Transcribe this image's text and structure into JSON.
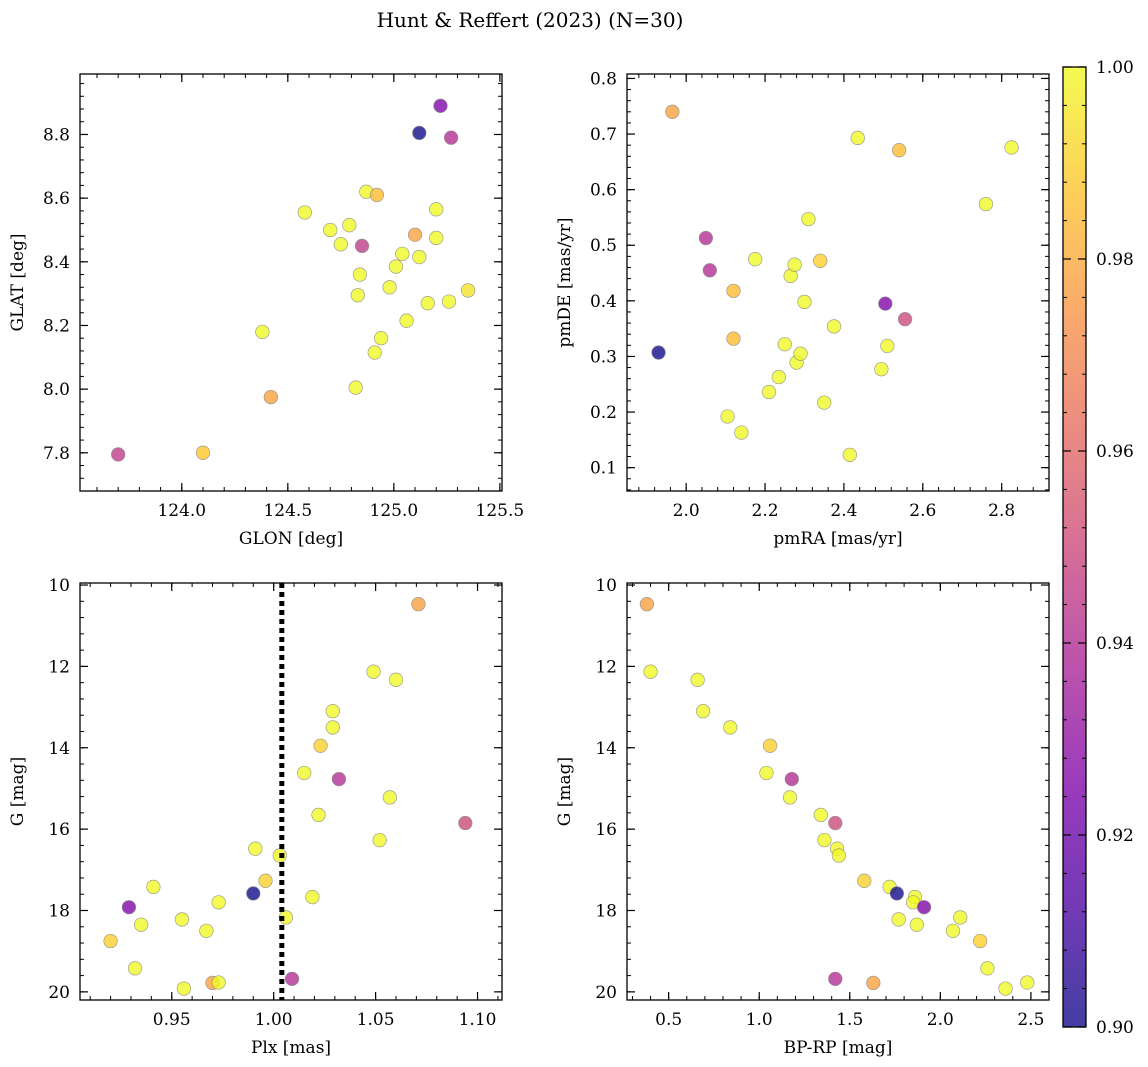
{
  "figure": {
    "title": "Hunt & Reffert (2023) (N=30)"
  },
  "colorbar": {
    "cmap": "plasma",
    "range": [
      0.9,
      1.0
    ],
    "ticks": [
      0.9,
      0.92,
      0.94,
      0.96,
      0.98,
      1.0
    ],
    "tick_labels": [
      "0.90",
      "0.92",
      "0.94",
      "0.96",
      "0.98",
      "1.00"
    ]
  },
  "chart_data": [
    {
      "type": "scatter",
      "xlabel": "GLON [deg]",
      "ylabel": "GLAT [deg]",
      "xlim": [
        123.52,
        125.51
      ],
      "ylim": [
        7.68,
        8.99
      ],
      "xticks": [
        124.0,
        124.5,
        125.0,
        125.5
      ],
      "xtick_labels": [
        "124.0",
        "124.5",
        "125.0",
        "125.5"
      ],
      "yticks": [
        7.8,
        8.0,
        8.2,
        8.4,
        8.6,
        8.8
      ],
      "ytick_labels": [
        "7.8",
        "8.0",
        "8.2",
        "8.4",
        "8.6",
        "8.8"
      ],
      "grid": false,
      "points": [
        {
          "x": 123.7,
          "y": 7.795,
          "c": 0.945
        },
        {
          "x": 124.1,
          "y": 7.8,
          "c": 0.988
        },
        {
          "x": 124.42,
          "y": 7.975,
          "c": 0.978
        },
        {
          "x": 124.38,
          "y": 8.18,
          "c": 1.0
        },
        {
          "x": 124.58,
          "y": 8.555,
          "c": 1.0
        },
        {
          "x": 124.7,
          "y": 8.5,
          "c": 1.0
        },
        {
          "x": 124.75,
          "y": 8.455,
          "c": 1.0
        },
        {
          "x": 124.79,
          "y": 8.515,
          "c": 1.0
        },
        {
          "x": 124.85,
          "y": 8.45,
          "c": 0.945
        },
        {
          "x": 124.87,
          "y": 8.62,
          "c": 1.0
        },
        {
          "x": 124.92,
          "y": 8.61,
          "c": 0.985
        },
        {
          "x": 124.84,
          "y": 8.36,
          "c": 1.0
        },
        {
          "x": 124.83,
          "y": 8.295,
          "c": 1.0
        },
        {
          "x": 124.82,
          "y": 8.005,
          "c": 1.0
        },
        {
          "x": 124.91,
          "y": 8.115,
          "c": 1.0
        },
        {
          "x": 124.94,
          "y": 8.16,
          "c": 1.0
        },
        {
          "x": 124.98,
          "y": 8.32,
          "c": 1.0
        },
        {
          "x": 125.01,
          "y": 8.385,
          "c": 1.0
        },
        {
          "x": 125.04,
          "y": 8.425,
          "c": 1.0
        },
        {
          "x": 125.06,
          "y": 8.215,
          "c": 1.0
        },
        {
          "x": 125.1,
          "y": 8.485,
          "c": 0.978
        },
        {
          "x": 125.12,
          "y": 8.415,
          "c": 1.0
        },
        {
          "x": 125.12,
          "y": 8.805,
          "c": 0.9
        },
        {
          "x": 125.16,
          "y": 8.27,
          "c": 1.0
        },
        {
          "x": 125.2,
          "y": 8.565,
          "c": 1.0
        },
        {
          "x": 125.2,
          "y": 8.475,
          "c": 1.0
        },
        {
          "x": 125.22,
          "y": 8.89,
          "c": 0.925
        },
        {
          "x": 125.26,
          "y": 8.275,
          "c": 1.0
        },
        {
          "x": 125.27,
          "y": 8.79,
          "c": 0.94
        },
        {
          "x": 125.35,
          "y": 8.31,
          "c": 0.995
        }
      ]
    },
    {
      "type": "scatter",
      "xlabel": "pmRA [mas/yr]",
      "ylabel": "pmDE [mas/yr]",
      "xlim": [
        1.85,
        2.92
      ],
      "ylim": [
        0.058,
        0.808
      ],
      "xticks": [
        2.0,
        2.2,
        2.4,
        2.6,
        2.8
      ],
      "xtick_labels": [
        "2.0",
        "2.2",
        "2.4",
        "2.6",
        "2.8"
      ],
      "yticks": [
        0.1,
        0.2,
        0.3,
        0.4,
        0.5,
        0.6,
        0.7,
        0.8
      ],
      "ytick_labels": [
        "0.1",
        "0.2",
        "0.3",
        "0.4",
        "0.5",
        "0.6",
        "0.7",
        "0.8"
      ],
      "grid": false,
      "points": [
        {
          "x": 1.93,
          "y": 0.307,
          "c": 0.9
        },
        {
          "x": 1.965,
          "y": 0.74,
          "c": 0.978
        },
        {
          "x": 2.05,
          "y": 0.513,
          "c": 0.94
        },
        {
          "x": 2.06,
          "y": 0.455,
          "c": 0.94
        },
        {
          "x": 2.105,
          "y": 0.192,
          "c": 1.0
        },
        {
          "x": 2.12,
          "y": 0.418,
          "c": 0.985
        },
        {
          "x": 2.12,
          "y": 0.332,
          "c": 0.985
        },
        {
          "x": 2.14,
          "y": 0.163,
          "c": 1.0
        },
        {
          "x": 2.175,
          "y": 0.475,
          "c": 1.0
        },
        {
          "x": 2.21,
          "y": 0.236,
          "c": 1.0
        },
        {
          "x": 2.235,
          "y": 0.263,
          "c": 1.0
        },
        {
          "x": 2.25,
          "y": 0.322,
          "c": 1.0
        },
        {
          "x": 2.265,
          "y": 0.445,
          "c": 1.0
        },
        {
          "x": 2.275,
          "y": 0.465,
          "c": 1.0
        },
        {
          "x": 2.28,
          "y": 0.289,
          "c": 1.0
        },
        {
          "x": 2.29,
          "y": 0.305,
          "c": 1.0
        },
        {
          "x": 2.3,
          "y": 0.398,
          "c": 1.0
        },
        {
          "x": 2.31,
          "y": 0.547,
          "c": 1.0
        },
        {
          "x": 2.34,
          "y": 0.472,
          "c": 0.99
        },
        {
          "x": 2.35,
          "y": 0.217,
          "c": 1.0
        },
        {
          "x": 2.375,
          "y": 0.354,
          "c": 1.0
        },
        {
          "x": 2.415,
          "y": 0.123,
          "c": 1.0
        },
        {
          "x": 2.435,
          "y": 0.693,
          "c": 1.0
        },
        {
          "x": 2.495,
          "y": 0.277,
          "c": 1.0
        },
        {
          "x": 2.505,
          "y": 0.395,
          "c": 0.925
        },
        {
          "x": 2.51,
          "y": 0.319,
          "c": 1.0
        },
        {
          "x": 2.54,
          "y": 0.671,
          "c": 0.985
        },
        {
          "x": 2.555,
          "y": 0.367,
          "c": 0.95
        },
        {
          "x": 2.76,
          "y": 0.574,
          "c": 1.0
        },
        {
          "x": 2.825,
          "y": 0.676,
          "c": 1.0
        }
      ]
    },
    {
      "type": "scatter",
      "xlabel": "Plx [mas]",
      "ylabel": "G [mag]",
      "xlim": [
        0.905,
        1.112
      ],
      "ylim": [
        20.2,
        9.95
      ],
      "xticks": [
        0.95,
        1.0,
        1.05,
        1.1
      ],
      "xtick_labels": [
        "0.95",
        "1.00",
        "1.05",
        "1.10"
      ],
      "yticks": [
        10,
        12,
        14,
        16,
        18,
        20
      ],
      "ytick_labels": [
        "10",
        "12",
        "14",
        "16",
        "18",
        "20"
      ],
      "grid": false,
      "vline": {
        "x": 1.004,
        "style": "dotted"
      },
      "points": [
        {
          "x": 0.92,
          "y": 18.75,
          "c": 0.99
        },
        {
          "x": 0.929,
          "y": 17.92,
          "c": 0.925
        },
        {
          "x": 0.932,
          "y": 19.42,
          "c": 1.0
        },
        {
          "x": 0.935,
          "y": 18.35,
          "c": 1.0
        },
        {
          "x": 0.941,
          "y": 17.42,
          "c": 1.0
        },
        {
          "x": 0.955,
          "y": 18.22,
          "c": 1.0
        },
        {
          "x": 0.956,
          "y": 19.92,
          "c": 1.0
        },
        {
          "x": 0.967,
          "y": 18.5,
          "c": 1.0
        },
        {
          "x": 0.97,
          "y": 19.78,
          "c": 0.978
        },
        {
          "x": 0.973,
          "y": 19.77,
          "c": 1.0
        },
        {
          "x": 0.973,
          "y": 17.8,
          "c": 1.0
        },
        {
          "x": 0.99,
          "y": 17.58,
          "c": 0.9
        },
        {
          "x": 0.991,
          "y": 16.48,
          "c": 1.0
        },
        {
          "x": 0.996,
          "y": 17.27,
          "c": 0.99
        },
        {
          "x": 1.003,
          "y": 16.65,
          "c": 1.0
        },
        {
          "x": 1.006,
          "y": 18.17,
          "c": 1.0
        },
        {
          "x": 1.009,
          "y": 19.68,
          "c": 0.94
        },
        {
          "x": 1.015,
          "y": 14.62,
          "c": 1.0
        },
        {
          "x": 1.019,
          "y": 17.67,
          "c": 1.0
        },
        {
          "x": 1.022,
          "y": 15.65,
          "c": 1.0
        },
        {
          "x": 1.023,
          "y": 13.95,
          "c": 0.99
        },
        {
          "x": 1.029,
          "y": 13.1,
          "c": 1.0
        },
        {
          "x": 1.029,
          "y": 13.5,
          "c": 1.0
        },
        {
          "x": 1.032,
          "y": 14.77,
          "c": 0.94
        },
        {
          "x": 1.049,
          "y": 12.13,
          "c": 1.0
        },
        {
          "x": 1.052,
          "y": 16.27,
          "c": 1.0
        },
        {
          "x": 1.057,
          "y": 15.22,
          "c": 1.0
        },
        {
          "x": 1.06,
          "y": 12.33,
          "c": 1.0
        },
        {
          "x": 1.071,
          "y": 10.47,
          "c": 0.978
        },
        {
          "x": 1.094,
          "y": 15.85,
          "c": 0.95
        }
      ]
    },
    {
      "type": "scatter",
      "xlabel": "BP-RP [mag]",
      "ylabel": "G [mag]",
      "xlim": [
        0.27,
        2.6
      ],
      "ylim": [
        20.2,
        9.95
      ],
      "xticks": [
        0.5,
        1.0,
        1.5,
        2.0,
        2.5
      ],
      "xtick_labels": [
        "0.5",
        "1.0",
        "1.5",
        "2.0",
        "2.5"
      ],
      "yticks": [
        10,
        12,
        14,
        16,
        18,
        20
      ],
      "ytick_labels": [
        "10",
        "12",
        "14",
        "16",
        "18",
        "20"
      ],
      "grid": false,
      "points": [
        {
          "x": 0.38,
          "y": 10.47,
          "c": 0.978
        },
        {
          "x": 0.4,
          "y": 12.13,
          "c": 1.0
        },
        {
          "x": 0.66,
          "y": 12.33,
          "c": 1.0
        },
        {
          "x": 0.69,
          "y": 13.1,
          "c": 1.0
        },
        {
          "x": 0.84,
          "y": 13.5,
          "c": 1.0
        },
        {
          "x": 1.06,
          "y": 13.95,
          "c": 0.99
        },
        {
          "x": 1.04,
          "y": 14.62,
          "c": 1.0
        },
        {
          "x": 1.18,
          "y": 14.77,
          "c": 0.94
        },
        {
          "x": 1.17,
          "y": 15.22,
          "c": 1.0
        },
        {
          "x": 1.34,
          "y": 15.65,
          "c": 1.0
        },
        {
          "x": 1.36,
          "y": 16.27,
          "c": 1.0
        },
        {
          "x": 1.42,
          "y": 15.85,
          "c": 0.95
        },
        {
          "x": 1.43,
          "y": 16.48,
          "c": 1.0
        },
        {
          "x": 1.44,
          "y": 16.65,
          "c": 1.0
        },
        {
          "x": 1.58,
          "y": 17.27,
          "c": 0.99
        },
        {
          "x": 1.72,
          "y": 17.42,
          "c": 1.0
        },
        {
          "x": 1.76,
          "y": 17.58,
          "c": 0.9
        },
        {
          "x": 1.77,
          "y": 18.22,
          "c": 1.0
        },
        {
          "x": 1.86,
          "y": 17.67,
          "c": 1.0
        },
        {
          "x": 1.85,
          "y": 17.8,
          "c": 1.0
        },
        {
          "x": 1.91,
          "y": 17.92,
          "c": 0.925
        },
        {
          "x": 1.87,
          "y": 18.35,
          "c": 1.0
        },
        {
          "x": 2.07,
          "y": 18.5,
          "c": 1.0
        },
        {
          "x": 2.11,
          "y": 18.17,
          "c": 1.0
        },
        {
          "x": 2.22,
          "y": 18.75,
          "c": 0.99
        },
        {
          "x": 2.26,
          "y": 19.42,
          "c": 1.0
        },
        {
          "x": 1.42,
          "y": 19.68,
          "c": 0.94
        },
        {
          "x": 1.63,
          "y": 19.78,
          "c": 0.978
        },
        {
          "x": 2.36,
          "y": 19.92,
          "c": 1.0
        },
        {
          "x": 2.48,
          "y": 19.77,
          "c": 1.0
        }
      ]
    }
  ]
}
